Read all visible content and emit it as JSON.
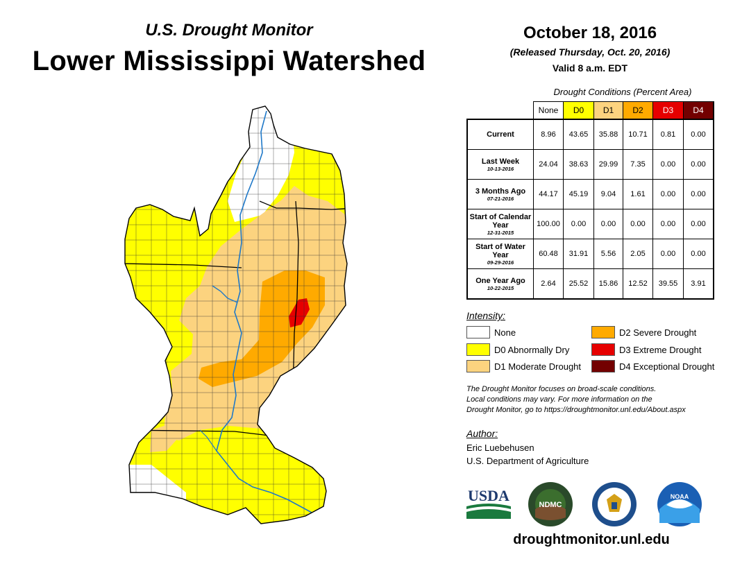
{
  "header": {
    "subtitle": "U.S. Drought Monitor",
    "title": "Lower Mississippi Watershed",
    "date": "October 18, 2016",
    "released": "(Released Thursday, Oct. 20, 2016)",
    "valid": "Valid 8 a.m. EDT"
  },
  "table": {
    "caption": "Drought Conditions (Percent Area)",
    "columns": [
      "None",
      "D0",
      "D1",
      "D2",
      "D3",
      "D4"
    ],
    "rows": [
      {
        "label": "Current",
        "date": "",
        "values": [
          "8.96",
          "43.65",
          "35.88",
          "10.71",
          "0.81",
          "0.00"
        ]
      },
      {
        "label": "Last Week",
        "date": "10-13-2016",
        "values": [
          "24.04",
          "38.63",
          "29.99",
          "7.35",
          "0.00",
          "0.00"
        ]
      },
      {
        "label": "3 Months Ago",
        "date": "07-21-2016",
        "values": [
          "44.17",
          "45.19",
          "9.04",
          "1.61",
          "0.00",
          "0.00"
        ]
      },
      {
        "label": "Start of Calendar Year",
        "date": "12-31-2015",
        "values": [
          "100.00",
          "0.00",
          "0.00",
          "0.00",
          "0.00",
          "0.00"
        ]
      },
      {
        "label": "Start of Water Year",
        "date": "09-29-2016",
        "values": [
          "60.48",
          "31.91",
          "5.56",
          "2.05",
          "0.00",
          "0.00"
        ]
      },
      {
        "label": "One Year Ago",
        "date": "10-22-2015",
        "values": [
          "2.64",
          "25.52",
          "15.86",
          "12.52",
          "39.55",
          "3.91"
        ]
      }
    ]
  },
  "legend": {
    "title": "Intensity:",
    "items": [
      {
        "label": "None",
        "color": "#ffffff"
      },
      {
        "label": "D0 Abnormally Dry",
        "color": "#ffff00"
      },
      {
        "label": "D1 Moderate Drought",
        "color": "#fcd37f"
      },
      {
        "label": "D2 Severe Drought",
        "color": "#ffaa00"
      },
      {
        "label": "D3 Extreme Drought",
        "color": "#e60000"
      },
      {
        "label": "D4 Exceptional Drought",
        "color": "#730000"
      }
    ]
  },
  "note": {
    "line1": "The Drought Monitor focuses on broad-scale conditions.",
    "line2": "Local conditions may vary. For more information on the",
    "line3": "Drought Monitor, go to https://droughtmonitor.unl.edu/About.aspx"
  },
  "author": {
    "title": "Author:",
    "name": "Eric Luebehusen",
    "org": "U.S. Department of Agriculture"
  },
  "logos": {
    "usda": "USDA",
    "ndmc": "NDMC",
    "noaa": "NOAA"
  },
  "url": "droughtmonitor.unl.edu"
}
